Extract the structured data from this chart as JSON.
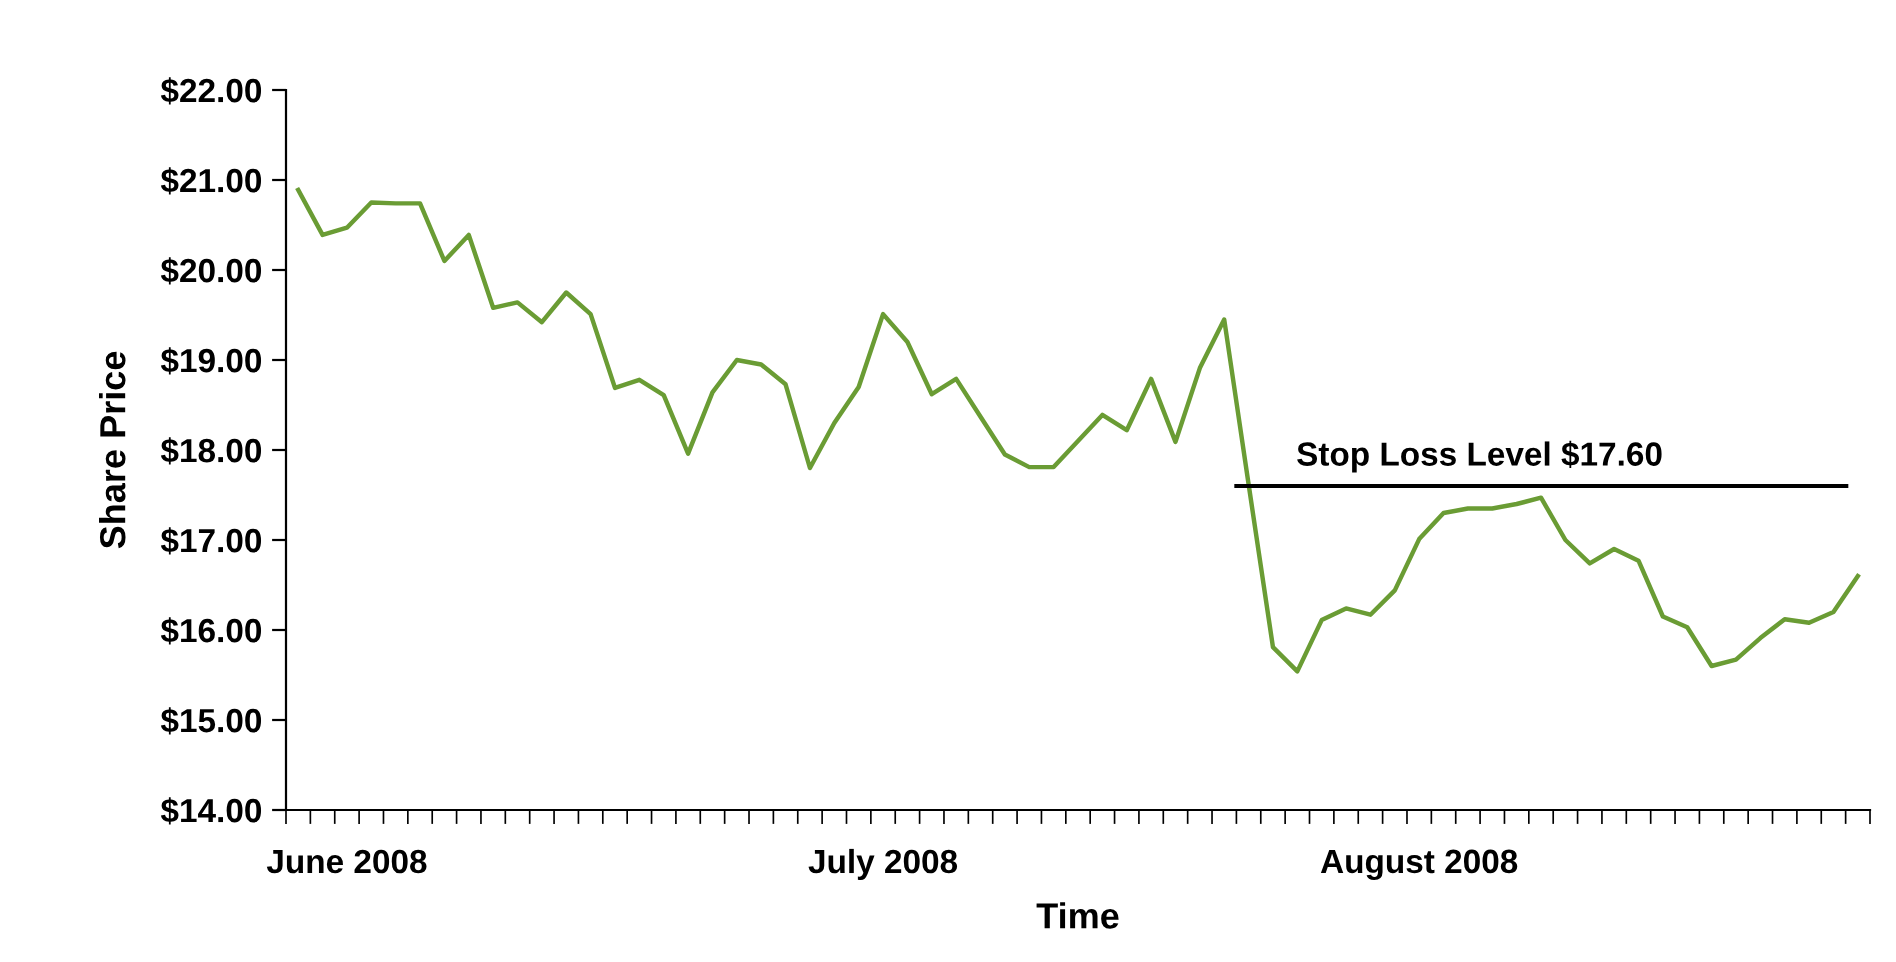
{
  "chart_data": {
    "type": "line",
    "xlabel": "Time",
    "ylabel": "Share Price",
    "categories": [
      null,
      null,
      "June 2008",
      null,
      null,
      null,
      null,
      null,
      null,
      null,
      null,
      null,
      null,
      null,
      null,
      null,
      null,
      null,
      null,
      null,
      null,
      null,
      null,
      null,
      "July 2008",
      null,
      null,
      null,
      null,
      null,
      null,
      null,
      null,
      null,
      null,
      null,
      null,
      null,
      null,
      null,
      null,
      null,
      null,
      null,
      null,
      null,
      "August 2008",
      null,
      null,
      null,
      null,
      null,
      null,
      null,
      null,
      null,
      null,
      null,
      null,
      null,
      null,
      null,
      null,
      null,
      null
    ],
    "series": [
      {
        "color": "#6a9c34",
        "values": [
          20.89,
          20.39,
          20.47,
          20.75,
          20.74,
          20.74,
          20.1,
          20.39,
          19.58,
          19.64,
          19.42,
          19.75,
          19.51,
          18.69,
          18.78,
          18.61,
          17.96,
          18.64,
          19.0,
          18.95,
          18.73,
          17.8,
          18.3,
          18.7,
          19.51,
          19.2,
          18.62,
          18.79,
          18.37,
          17.95,
          17.81,
          17.81,
          18.1,
          18.39,
          18.22,
          18.79,
          18.09,
          18.91,
          19.45,
          17.62,
          15.81,
          15.54,
          16.11,
          16.24,
          16.17,
          16.44,
          17.01,
          17.3,
          17.35,
          17.35,
          17.4,
          17.47,
          17.0,
          16.74,
          16.9,
          16.77,
          16.15,
          16.03,
          15.6,
          15.67,
          15.91,
          16.12,
          16.08,
          16.2,
          16.6
        ]
      }
    ],
    "ylim": [
      14,
      22
    ],
    "yticks": [
      {
        "value": 14,
        "label": "$14.00"
      },
      {
        "value": 15,
        "label": "$15.00"
      },
      {
        "value": 16,
        "label": "$16.00"
      },
      {
        "value": 17,
        "label": "$17.00"
      },
      {
        "value": 18,
        "label": "$18.00"
      },
      {
        "value": 19,
        "label": "$19.00"
      },
      {
        "value": 20,
        "label": "$20.00"
      },
      {
        "value": 21,
        "label": "$21.00"
      },
      {
        "value": 22,
        "label": "$22.00"
      }
    ],
    "ref_lines": [
      {
        "axis": "y",
        "value": 17.6,
        "label": "Stop Loss Level $17.60",
        "color": "#000000"
      }
    ],
    "grid": false,
    "legend": false,
    "marker": "none",
    "line_style": "solid"
  }
}
